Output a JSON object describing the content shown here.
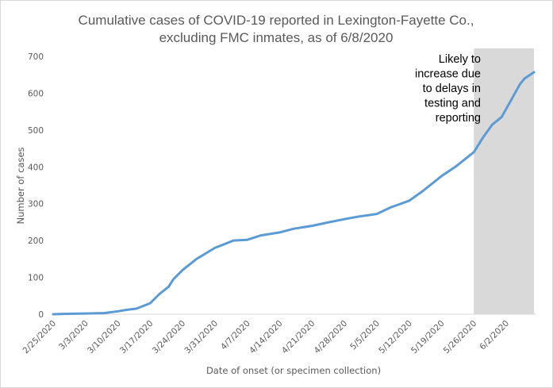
{
  "chart_data": {
    "type": "line",
    "title": [
      "Cumulative cases of COVID-19 reported in Lexington-Fayette Co.,",
      "excluding FMC inmates, as of 6/8/2020"
    ],
    "xlabel": "Date of onset (or specimen collection)",
    "ylabel": "Number of cases",
    "ylim": [
      0,
      700
    ],
    "yticks": [
      0,
      100,
      200,
      300,
      400,
      500,
      600,
      700
    ],
    "x_start": "2/25/2020",
    "x_end": "6/8/2020",
    "xtick_labels": [
      "2/25/2020",
      "3/3/2020",
      "3/10/2020",
      "3/17/2020",
      "3/24/2020",
      "3/31/2020",
      "4/7/2020",
      "4/14/2020",
      "4/21/2020",
      "4/28/2020",
      "5/5/2020",
      "5/12/2020",
      "5/19/2020",
      "5/26/2020",
      "6/2/2020"
    ],
    "grid": false,
    "line_color": "#5b9bd5",
    "shaded_region": {
      "from": "5/26/2020",
      "to": "6/8/2020",
      "color": "#d9d9d9"
    },
    "annotation": [
      "Likely to",
      "increase due",
      "to delays in",
      "testing and",
      "reporting"
    ],
    "series": [
      {
        "name": "Cumulative cases",
        "points": [
          [
            "2/25/2020",
            0
          ],
          [
            "2/28/2020",
            1
          ],
          [
            "3/3/2020",
            2
          ],
          [
            "3/7/2020",
            3
          ],
          [
            "3/10/2020",
            8
          ],
          [
            "3/12/2020",
            12
          ],
          [
            "3/14/2020",
            15
          ],
          [
            "3/17/2020",
            30
          ],
          [
            "3/19/2020",
            55
          ],
          [
            "3/21/2020",
            75
          ],
          [
            "3/22/2020",
            95
          ],
          [
            "3/24/2020",
            120
          ],
          [
            "3/27/2020",
            150
          ],
          [
            "3/29/2020",
            165
          ],
          [
            "3/31/2020",
            180
          ],
          [
            "4/2/2020",
            190
          ],
          [
            "4/4/2020",
            200
          ],
          [
            "4/7/2020",
            202
          ],
          [
            "4/10/2020",
            214
          ],
          [
            "4/14/2020",
            222
          ],
          [
            "4/17/2020",
            232
          ],
          [
            "4/21/2020",
            240
          ],
          [
            "4/24/2020",
            248
          ],
          [
            "4/28/2020",
            258
          ],
          [
            "5/1/2020",
            265
          ],
          [
            "5/5/2020",
            272
          ],
          [
            "5/8/2020",
            290
          ],
          [
            "5/12/2020",
            308
          ],
          [
            "5/15/2020",
            335
          ],
          [
            "5/19/2020",
            375
          ],
          [
            "5/22/2020",
            400
          ],
          [
            "5/26/2020",
            440
          ],
          [
            "5/28/2020",
            480
          ],
          [
            "5/30/2020",
            515
          ],
          [
            "6/1/2020",
            535
          ],
          [
            "6/3/2020",
            580
          ],
          [
            "6/5/2020",
            625
          ],
          [
            "6/6/2020",
            640
          ],
          [
            "6/8/2020",
            657
          ]
        ]
      }
    ]
  }
}
